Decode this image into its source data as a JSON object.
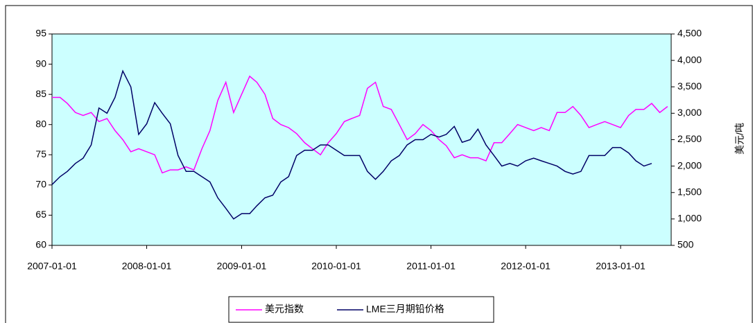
{
  "chart_data": {
    "type": "line",
    "x": [
      "2007-01-01",
      "2007-02-01",
      "2007-03-01",
      "2007-04-01",
      "2007-05-01",
      "2007-06-01",
      "2007-07-01",
      "2007-08-01",
      "2007-09-01",
      "2007-10-01",
      "2007-11-01",
      "2007-12-01",
      "2008-01-01",
      "2008-02-01",
      "2008-03-01",
      "2008-04-01",
      "2008-05-01",
      "2008-06-01",
      "2008-07-01",
      "2008-08-01",
      "2008-09-01",
      "2008-10-01",
      "2008-11-01",
      "2008-12-01",
      "2009-01-01",
      "2009-02-01",
      "2009-03-01",
      "2009-04-01",
      "2009-05-01",
      "2009-06-01",
      "2009-07-01",
      "2009-08-01",
      "2009-09-01",
      "2009-10-01",
      "2009-11-01",
      "2009-12-01",
      "2010-01-01",
      "2010-02-01",
      "2010-03-01",
      "2010-04-01",
      "2010-05-01",
      "2010-06-01",
      "2010-07-01",
      "2010-08-01",
      "2010-09-01",
      "2010-10-01",
      "2010-11-01",
      "2010-12-01",
      "2011-01-01",
      "2011-02-01",
      "2011-03-01",
      "2011-04-01",
      "2011-05-01",
      "2011-06-01",
      "2011-07-01",
      "2011-08-01",
      "2011-09-01",
      "2011-10-01",
      "2011-11-01",
      "2011-12-01",
      "2012-01-01",
      "2012-02-01",
      "2012-03-01",
      "2012-04-01",
      "2012-05-01",
      "2012-06-01",
      "2012-07-01",
      "2012-08-01",
      "2012-09-01",
      "2012-10-01",
      "2012-11-01",
      "2012-12-01",
      "2013-01-01",
      "2013-02-01",
      "2013-03-01",
      "2013-04-01",
      "2013-05-01",
      "2013-06-01",
      "2013-07-01"
    ],
    "series": [
      {
        "name": "美元指数",
        "color": "#ff00ff",
        "axis": "y",
        "values": [
          84.5,
          84.5,
          83.5,
          82,
          81.5,
          82,
          80.5,
          81,
          79,
          77.5,
          75.5,
          76,
          75.5,
          75,
          72,
          72.5,
          72.5,
          73,
          72.5,
          76,
          79,
          84,
          87,
          82,
          85,
          88,
          87,
          85,
          81,
          80,
          79.5,
          78.5,
          77,
          76,
          75,
          77,
          78.5,
          80.5,
          81,
          81.5,
          86,
          87,
          83,
          82.5,
          80,
          77.5,
          78.5,
          80,
          79,
          77.5,
          76.5,
          74.5,
          75,
          74.5,
          74.5,
          74,
          77,
          77,
          78.5,
          80,
          79.5,
          79,
          79.5,
          79,
          82,
          82,
          83,
          81.5,
          79.5,
          80,
          80.5,
          80,
          79.5,
          81.5,
          82.5,
          82.5,
          83.5,
          82,
          83
        ]
      },
      {
        "name": "LME三月期铅价格",
        "color": "#000066",
        "axis": "y2",
        "values": [
          1650,
          1800,
          1900,
          2050,
          2150,
          2400,
          3100,
          3000,
          3300,
          3800,
          3500,
          2600,
          2800,
          3200,
          3000,
          2800,
          2200,
          1900,
          1900,
          1800,
          1700,
          1400,
          1200,
          1000,
          1100,
          1100,
          1250,
          1400,
          1450,
          1700,
          1800,
          2200,
          2300,
          2300,
          2400,
          2400,
          2300,
          2200,
          2200,
          2200,
          1900,
          1750,
          1900,
          2100,
          2200,
          2400,
          2500,
          2500,
          2600,
          2550,
          2600,
          2750,
          2450,
          2500,
          2700,
          2400,
          2200,
          2000,
          2050,
          2000,
          2100,
          2150,
          2100,
          2050,
          2000,
          1900,
          1850,
          1900,
          2200,
          2200,
          2200,
          2350,
          2350,
          2250,
          2100,
          2000,
          2050,
          null,
          null
        ]
      }
    ],
    "xlim": [
      "2007-01-01",
      "2013-07-15"
    ],
    "xticks": [
      "2007-01-01",
      "2008-01-01",
      "2009-01-01",
      "2010-01-01",
      "2011-01-01",
      "2012-01-01",
      "2013-01-01"
    ],
    "ylim": [
      60,
      95
    ],
    "yticks": [
      60,
      65,
      70,
      75,
      80,
      85,
      90,
      95
    ],
    "y2lim": [
      500,
      4500
    ],
    "y2ticks": [
      {
        "value": 500,
        "label": "500"
      },
      {
        "value": 1000,
        "label": "1,000"
      },
      {
        "value": 1500,
        "label": "1,500"
      },
      {
        "value": 2000,
        "label": "2,000"
      },
      {
        "value": 2500,
        "label": "2,500"
      },
      {
        "value": 3000,
        "label": "3,000"
      },
      {
        "value": 3500,
        "label": "3,500"
      },
      {
        "value": 4000,
        "label": "4,000"
      },
      {
        "value": 4500,
        "label": "4,500"
      }
    ],
    "y2label": "美元/吨",
    "legend": "bottom"
  }
}
